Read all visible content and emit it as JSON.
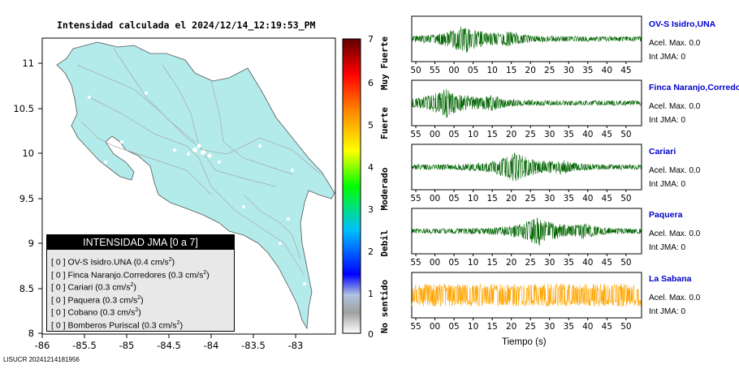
{
  "title": "Intensidad calculada el 2024/12/14_12:19:53_PM",
  "map": {
    "lon_ticks": [
      "-86",
      "-85.5",
      "-85",
      "-84.5",
      "-84",
      "-83.5",
      "-83"
    ],
    "lat_ticks": [
      "11",
      "10.5",
      "10",
      "9.5",
      "9",
      "8.5",
      "8"
    ]
  },
  "colorbar": {
    "ticks": [
      "7",
      "6",
      "5",
      "4",
      "3",
      "2",
      "1",
      "0"
    ],
    "categories": [
      "Muy Fuerte",
      "Fuerte",
      "Moderado",
      "Debil",
      "No sentido"
    ]
  },
  "legend": {
    "header": "INTENSIDAD JMA [0 a 7]",
    "rows": [
      {
        "bracket": "[ 0 ]",
        "name": "OV-S Isidro.UNA",
        "value": "(0.4 cm/s",
        "unit_sup": "2",
        "close": ")"
      },
      {
        "bracket": "[ 0 ]",
        "name": "Finca Naranjo.Corredores",
        "value": "(0.3 cm/s",
        "unit_sup": "2",
        "close": ")"
      },
      {
        "bracket": "[ 0 ]",
        "name": "Cariari",
        "value": "(0.3 cm/s",
        "unit_sup": "2",
        "close": ")"
      },
      {
        "bracket": "[ 0 ]",
        "name": "Paquera",
        "value": "(0.3 cm/s",
        "unit_sup": "2",
        "close": ")"
      },
      {
        "bracket": "[ 0 ]",
        "name": "Cobano",
        "value": "(0.3 cm/s",
        "unit_sup": "2",
        "close": ")"
      },
      {
        "bracket": "[ 0 ]",
        "name": "Bomberos Puriscal",
        "value": "(0.3 cm/s",
        "unit_sup": "2",
        "close": ")"
      }
    ]
  },
  "stations": [
    {
      "name": "OV-S Isidro,UNA",
      "acel": "Acel. Max. 0.0",
      "jma": "Int JMA: 0",
      "color": "#006400",
      "ticks": [
        "50",
        "55",
        "00",
        "05",
        "10",
        "15",
        "20",
        "25",
        "30",
        "35",
        "40",
        "45"
      ],
      "burst": 0.23
    },
    {
      "name": "Finca Naranjo,Corredores",
      "acel": "Acel. Max. 0.0",
      "jma": "Int JMA: 0",
      "color": "#006400",
      "ticks": [
        "55",
        "00",
        "05",
        "10",
        "15",
        "20",
        "25",
        "30",
        "35",
        "40",
        "45",
        "50"
      ],
      "burst": 0.15
    },
    {
      "name": "Cariari",
      "acel": "Acel. Max. 0.0",
      "jma": "Int JMA: 0",
      "color": "#006400",
      "ticks": [
        "55",
        "00",
        "05",
        "10",
        "15",
        "20",
        "25",
        "30",
        "35",
        "40",
        "45",
        "50"
      ],
      "burst": 0.45
    },
    {
      "name": "Paquera",
      "acel": "Acel. Max. 0.0",
      "jma": "Int JMA: 0",
      "color": "#006400",
      "ticks": [
        "55",
        "00",
        "05",
        "10",
        "15",
        "20",
        "25",
        "30",
        "35",
        "40",
        "45",
        "50"
      ],
      "burst": 0.55
    },
    {
      "name": "La Sabana",
      "acel": "Acel. Max. 0.0",
      "jma": "Int JMA: 0",
      "color": "#ffa500",
      "ticks": [
        "55",
        "00",
        "05",
        "10",
        "15",
        "20",
        "25",
        "30",
        "35",
        "40",
        "45",
        "50"
      ],
      "burst": 0.0
    }
  ],
  "xlabel": "Tiempo (s)",
  "footer": "LISUCR 20241214181956"
}
